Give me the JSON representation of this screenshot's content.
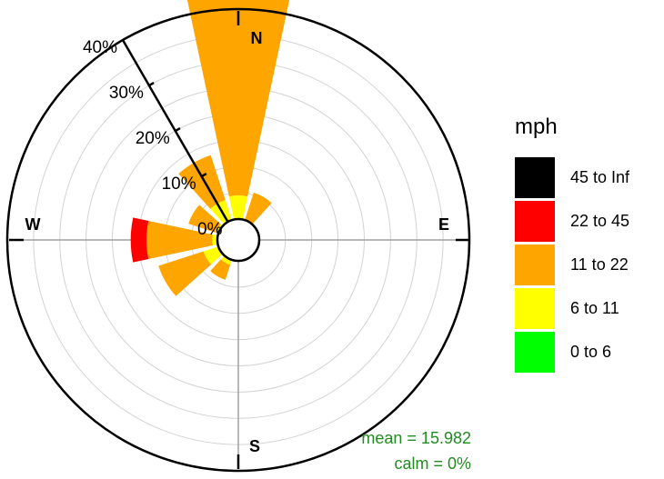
{
  "chart_data": {
    "type": "windrose",
    "unit": "mph",
    "compass_labels": {
      "north": "N",
      "east": "E",
      "south": "S",
      "west": "W"
    },
    "radial_ticks": [
      "0%",
      "10%",
      "20%",
      "30%",
      "40%"
    ],
    "radial_max_pct": 40,
    "directions_deg": [
      0,
      30,
      60,
      90,
      120,
      150,
      180,
      210,
      240,
      270,
      300,
      330
    ],
    "speed_bins": [
      {
        "label": "0 to 6",
        "color": "#00ff00"
      },
      {
        "label": "6 to 11",
        "color": "#ffff00"
      },
      {
        "label": "11 to 22",
        "color": "#ffa500"
      },
      {
        "label": "22 to 45",
        "color": "#ff0000"
      },
      {
        "label": "45 to Inf",
        "color": "#000000"
      }
    ],
    "series": [
      {
        "name": "0 to 6",
        "values": [
          0,
          0,
          0,
          0,
          0,
          0,
          0,
          0,
          0,
          0,
          0,
          0
        ]
      },
      {
        "name": "6 to 11",
        "values": [
          4.5,
          0,
          0,
          0,
          0,
          0,
          0,
          1,
          3,
          1,
          0.5,
          4
        ]
      },
      {
        "name": "11 to 22",
        "values": [
          38.5,
          5.5,
          0,
          0,
          0,
          0,
          0,
          3,
          9,
          12.5,
          5.5,
          9
        ]
      },
      {
        "name": "22 to 45",
        "values": [
          0,
          0,
          0,
          0,
          0,
          0,
          0,
          0,
          0,
          3,
          0,
          0
        ]
      },
      {
        "name": "45 to Inf",
        "values": [
          0,
          0,
          0,
          0,
          0,
          0,
          0,
          0,
          0,
          0,
          0,
          0
        ]
      }
    ],
    "annotations": {
      "mean": "mean = 15.982",
      "calm": "calm = 0%"
    },
    "colors": {
      "annotation": "#228b22",
      "grid": "#d3d3d3",
      "axis": "#a0a0a0"
    }
  },
  "legend": {
    "title": "mph",
    "items": [
      {
        "label": "45 to Inf",
        "color": "#000000"
      },
      {
        "label": "22 to 45",
        "color": "#ff0000"
      },
      {
        "label": "11 to 22",
        "color": "#ffa500"
      },
      {
        "label": "6 to 11",
        "color": "#ffff00"
      },
      {
        "label": "0 to 6",
        "color": "#00ff00"
      }
    ]
  }
}
